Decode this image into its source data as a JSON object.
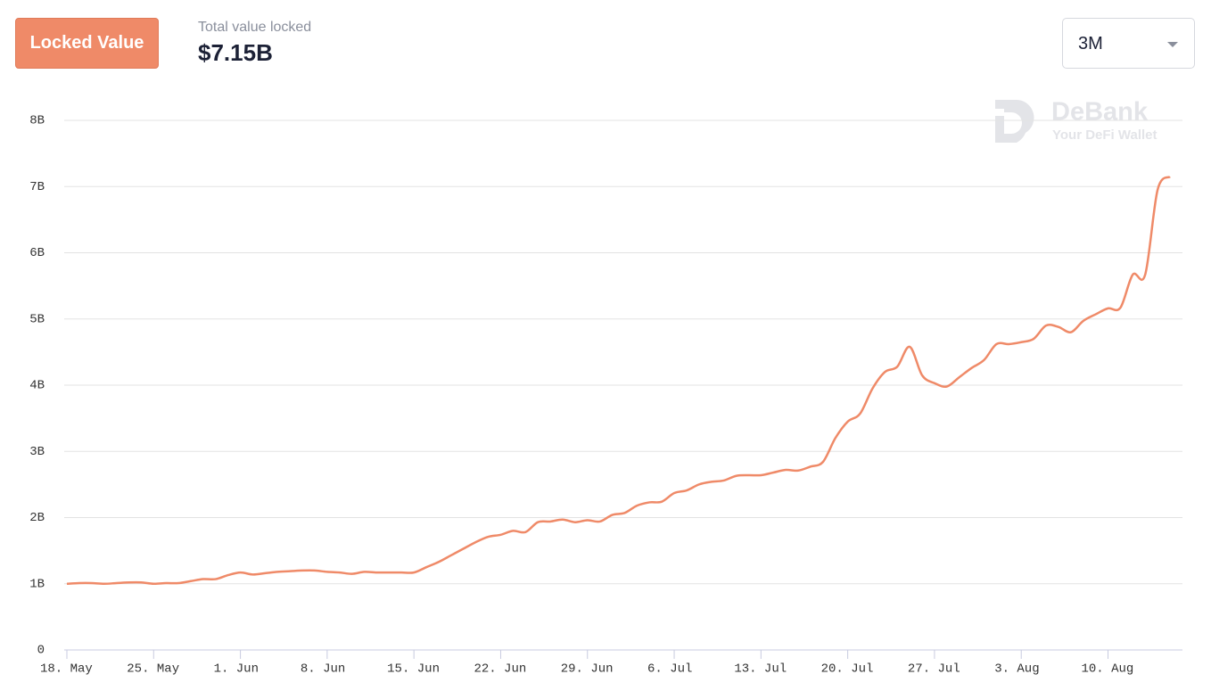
{
  "header": {
    "button": "Locked Value",
    "stat_label": "Total value locked",
    "stat_value": "$7.15B",
    "range": "3M",
    "watermark": "DeBank",
    "watermark_sub": "Your DeFi Wallet"
  },
  "chart_data": {
    "type": "line",
    "color": "#ef8a68",
    "grid": true,
    "categories": [
      "18. May",
      null,
      null,
      null,
      null,
      null,
      null,
      "25. May",
      null,
      null,
      null,
      null,
      null,
      null,
      "1. Jun",
      null,
      null,
      null,
      null,
      null,
      null,
      "8. Jun",
      null,
      null,
      null,
      null,
      null,
      null,
      "15. Jun",
      null,
      null,
      null,
      null,
      null,
      null,
      "22. Jun",
      null,
      null,
      null,
      null,
      null,
      null,
      "29. Jun",
      null,
      null,
      null,
      null,
      null,
      null,
      "6. Jul",
      null,
      null,
      null,
      null,
      null,
      null,
      "13. Jul",
      null,
      null,
      null,
      null,
      null,
      null,
      "20. Jul",
      null,
      null,
      null,
      null,
      null,
      null,
      "27. Jul",
      null,
      null,
      null,
      null,
      null,
      null,
      "3. Aug",
      null,
      null,
      null,
      null,
      null,
      null,
      "10. Aug",
      null,
      null,
      null,
      null,
      null
    ],
    "values": [
      1.0,
      1.01,
      1.01,
      1.0,
      1.01,
      1.02,
      1.02,
      1.0,
      1.01,
      1.01,
      1.04,
      1.07,
      1.07,
      1.13,
      1.17,
      1.14,
      1.16,
      1.18,
      1.19,
      1.2,
      1.2,
      1.18,
      1.17,
      1.15,
      1.18,
      1.17,
      1.17,
      1.17,
      1.17,
      1.25,
      1.33,
      1.43,
      1.53,
      1.63,
      1.71,
      1.74,
      1.8,
      1.78,
      1.93,
      1.94,
      1.97,
      1.93,
      1.96,
      1.94,
      2.04,
      2.07,
      2.18,
      2.23,
      2.24,
      2.37,
      2.41,
      2.5,
      2.54,
      2.56,
      2.63,
      2.64,
      2.64,
      2.68,
      2.72,
      2.71,
      2.77,
      2.84,
      3.2,
      3.45,
      3.57,
      3.95,
      4.2,
      4.28,
      4.58,
      4.15,
      4.03,
      3.98,
      4.12,
      4.26,
      4.38,
      4.62,
      4.62,
      4.65,
      4.7,
      4.9,
      4.88,
      4.8,
      4.97,
      5.07,
      5.16,
      5.17,
      5.67,
      5.67,
      6.95,
      7.15
    ],
    "ylim": [
      0,
      8
    ],
    "yticks": [
      0,
      {
        "value": 1,
        "label": "1B"
      },
      {
        "value": 2,
        "label": "2B"
      },
      {
        "value": 3,
        "label": "3B"
      },
      {
        "value": 4,
        "label": "4B"
      },
      {
        "value": 5,
        "label": "5B"
      },
      {
        "value": 6,
        "label": "6B"
      },
      {
        "value": 7,
        "label": "7B"
      },
      {
        "value": 8,
        "label": "8B"
      }
    ]
  }
}
